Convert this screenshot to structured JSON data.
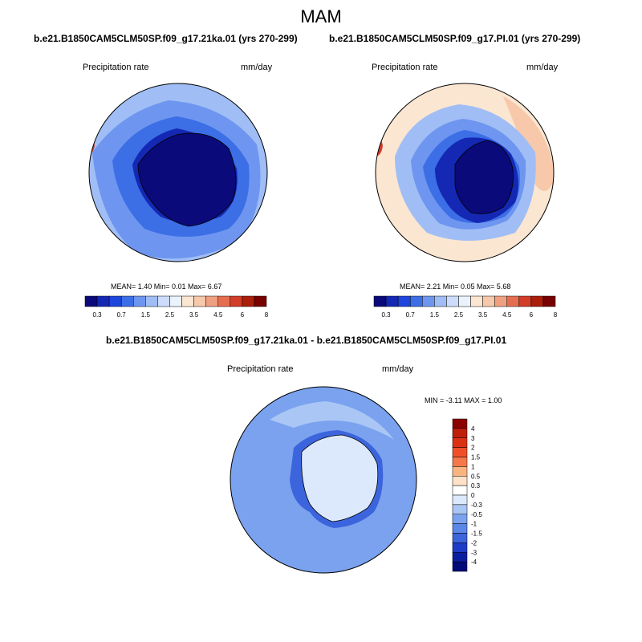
{
  "title": "MAM",
  "panels": [
    {
      "case": "b.e21.B1850CAM5CLM50SP.f09_g17.21ka.01 (yrs 270-299)",
      "variable": "Precipitation rate",
      "units": "mm/day",
      "mean": "1.40",
      "min": "0.01",
      "max": "6.67",
      "stats": "MEAN=   1.40  Min=   0.01  Max=   6.67"
    },
    {
      "case": "b.e21.B1850CAM5CLM50SP.f09_g17.PI.01 (yrs 270-299)",
      "variable": "Precipitation rate",
      "units": "mm/day",
      "mean": "2.21",
      "min": "0.05",
      "max": "5.68",
      "stats": "MEAN=   2.21  Min=   0.05  Max=   5.68"
    },
    {
      "case": "b.e21.B1850CAM5CLM50SP.f09_g17.21ka.01 - b.e21.B1850CAM5CLM50SP.f09_g17.PI.01",
      "variable": "Precipitation rate",
      "units": "mm/day",
      "min": "-3.11",
      "max": "1.00",
      "stats": "MIN =  -3.11 MAX =   1.00"
    }
  ],
  "colorbar_horizontal": {
    "labels": [
      "0.3",
      "0.7",
      "1.5",
      "2.5",
      "3.5",
      "4.5",
      "6",
      "8"
    ],
    "colors": [
      "#0a0a7a",
      "#1428b4",
      "#1e46dc",
      "#3c6ee6",
      "#6e96f0",
      "#a0bef5",
      "#cddcfa",
      "#eaf2fc",
      "#fbe6d2",
      "#f7c8aa",
      "#f0a082",
      "#e66e50",
      "#d23c28",
      "#aa1e0a",
      "#780000"
    ]
  },
  "colorbar_vertical": {
    "labels": [
      "4",
      "3",
      "2",
      "1.5",
      "1",
      "0.5",
      "0.3",
      "0",
      "-0.3",
      "-0.5",
      "-1",
      "-1.5",
      "-2",
      "-3",
      "-4"
    ],
    "colors": [
      "#8c0000",
      "#be1e0a",
      "#dc3214",
      "#f05028",
      "#f5784b",
      "#fab482",
      "#fde2c8",
      "#ffffff",
      "#dce9fc",
      "#aac6f5",
      "#7aa2ee",
      "#5b87e8",
      "#3c64dc",
      "#1e3cc8",
      "#0a1ea0",
      "#000a78"
    ]
  },
  "map_colors": {
    "ocean_abs_a": "#a0bef5",
    "ocean_abs_b": "#6e96f0",
    "ocean_abs_c": "#3c6ee6",
    "ice_dark": "#0a0a7a",
    "ice_mid": "#1428b4",
    "warm_light": "#fbe6d2",
    "warm_mid": "#f7c8aa",
    "warm_strong": "#d23c28",
    "diff_ocean": "#7aa2ee",
    "diff_light": "#aac6f5",
    "diff_pale": "#dce9fc",
    "diff_deep": "#3c64dc"
  }
}
